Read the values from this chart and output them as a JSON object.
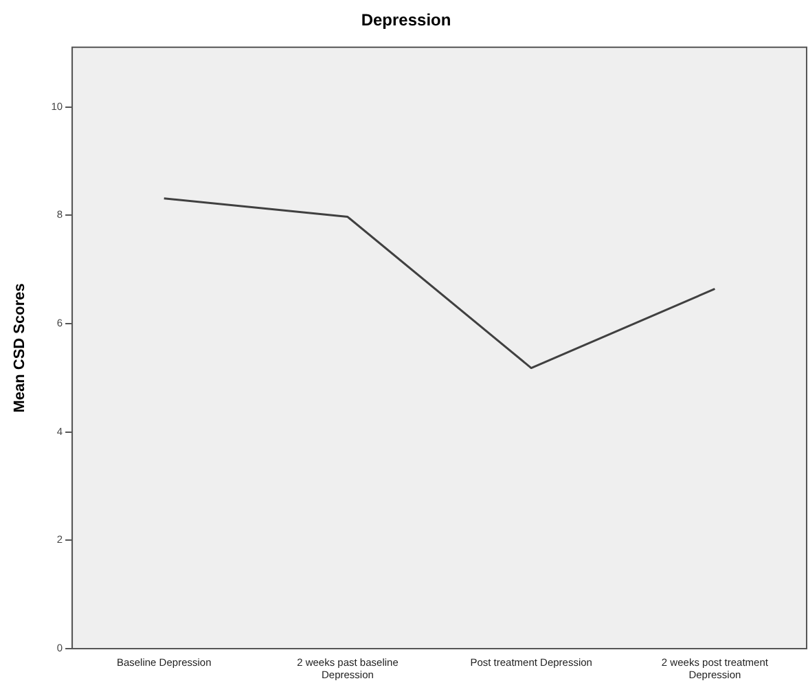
{
  "chart_data": {
    "type": "line",
    "title": "Depression",
    "ylabel": "Mean CSD Scores",
    "categories": [
      "Baseline Depression",
      "2 weeks past baseline Depression",
      "Post treatment Depression",
      "2 weeks post treatment Depression"
    ],
    "series": [
      {
        "color": "#404040",
        "values": [
          8.31,
          7.97,
          5.18,
          6.64
        ]
      }
    ],
    "ylim": [
      0,
      11.1
    ],
    "yticks": [
      0,
      2,
      4,
      6,
      8,
      10
    ],
    "grid": false,
    "legend": false,
    "marker": "none",
    "line_style": "solid"
  }
}
